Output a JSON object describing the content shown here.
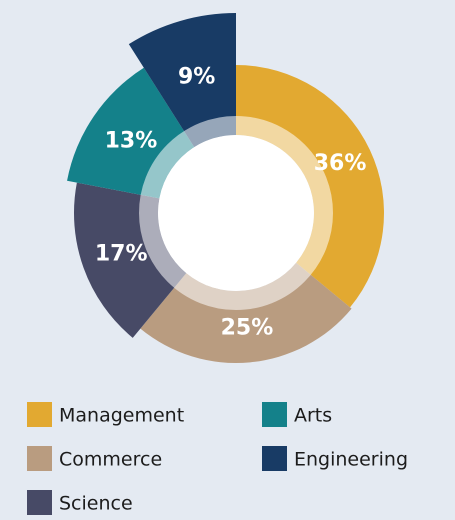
{
  "chart_data": {
    "type": "pie",
    "categories": [
      "Management",
      "Commerce",
      "Science",
      "Arts",
      "Engineering"
    ],
    "values": [
      36,
      25,
      17,
      13,
      9
    ],
    "value_labels": [
      "36%",
      "25%",
      "17%",
      "13%",
      "9%"
    ],
    "colors": [
      "#e2a931",
      "#b99c80",
      "#474a66",
      "#14818a",
      "#183b65"
    ],
    "legend": "bottom"
  }
}
